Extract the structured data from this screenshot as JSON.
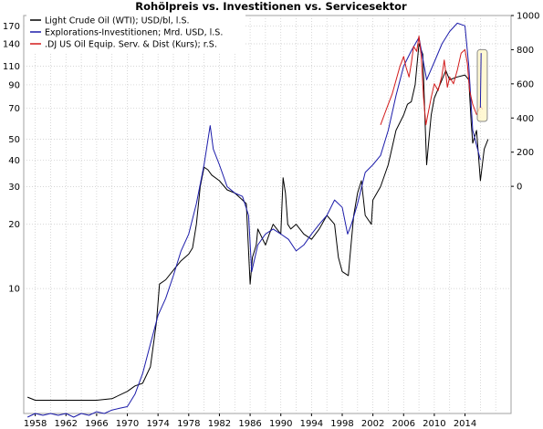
{
  "chart_data": {
    "type": "line",
    "title": "Rohölpreis vs. Investitionen vs. Servicesektor",
    "grid": true,
    "legend_position": "top-left",
    "x_ticks": [
      "1958",
      "1962",
      "1966",
      "1970",
      "1974",
      "1978",
      "1982",
      "1986",
      "1990",
      "1994",
      "1998",
      "2002",
      "2006",
      "2010",
      "2014"
    ],
    "xlim": [
      1956.5,
      2020
    ],
    "left_axis": {
      "scale": "log",
      "ticks": [
        10,
        20,
        30,
        40,
        50,
        70,
        90,
        110,
        140,
        170
      ],
      "ylim": [
        2.6,
        190
      ]
    },
    "right_axis": {
      "scale": "linear",
      "ticks": [
        0,
        200,
        400,
        600,
        800,
        1000
      ],
      "ylim": [
        -1330,
        1000
      ]
    },
    "series": [
      {
        "name": "Light Crude Oil (WTI); USD/bl, l.S.",
        "axis": "left",
        "color": "#000000",
        "x": [
          1957,
          1958,
          1962,
          1966,
          1968,
          1970,
          1971,
          1972,
          1973,
          1973.8,
          1974.2,
          1975,
          1976,
          1977,
          1978,
          1978.5,
          1979,
          1979.5,
          1980,
          1980.5,
          1981,
          1982,
          1983,
          1984,
          1985,
          1985.5,
          1986.0,
          1986.3,
          1986.8,
          1987,
          1988,
          1988.5,
          1989,
          1990,
          1990.3,
          1990.6,
          1990.9,
          1991.3,
          1992,
          1993,
          1994,
          1995,
          1996,
          1997,
          1997.5,
          1998,
          1998.8,
          1999,
          1999.5,
          2000,
          2000.5,
          2001,
          2001.8,
          2002,
          2003,
          2004,
          2005,
          2006,
          2006.5,
          2007,
          2007.5,
          2008,
          2008.5,
          2008.8,
          2009.0,
          2009.3,
          2009.6,
          2010,
          2011,
          2011.5,
          2012,
          2013,
          2014,
          2014.5,
          2014.8,
          2015,
          2015.5,
          2016,
          2016.5,
          2017
        ],
        "values": [
          3.1,
          3.0,
          3.0,
          3.0,
          3.05,
          3.3,
          3.5,
          3.6,
          4.3,
          7.0,
          10.5,
          11.0,
          12.2,
          13.5,
          14.5,
          15.5,
          20,
          30,
          37,
          36,
          34,
          32,
          29,
          28,
          26,
          25,
          10.5,
          14,
          16,
          19,
          16,
          18,
          20,
          18,
          33,
          28,
          20,
          19,
          20,
          18,
          17,
          19,
          22,
          20,
          14,
          12,
          11.5,
          14,
          22,
          28,
          32,
          22,
          20,
          26,
          30,
          38,
          55,
          65,
          73,
          75,
          90,
          140,
          125,
          60,
          38,
          50,
          65,
          78,
          95,
          105,
          95,
          98,
          100,
          95,
          60,
          48,
          55,
          32,
          45,
          50
        ]
      },
      {
        "name": "Explorations-Investitionen; Mrd. USD, l.S.",
        "axis": "left",
        "color": "#1c1caa",
        "x": [
          1957,
          1958,
          1959,
          1960,
          1961,
          1962,
          1963,
          1964,
          1965,
          1966,
          1967,
          1968,
          1969,
          1970,
          1971,
          1972,
          1973,
          1974,
          1975,
          1976,
          1977,
          1978,
          1979,
          1980,
          1980.8,
          1981.2,
          1982,
          1983,
          1984,
          1985,
          1985.8,
          1986.2,
          1987,
          1988,
          1989,
          1990,
          1991,
          1992,
          1993,
          1994,
          1995,
          1996,
          1997,
          1998,
          1998.7,
          1999.2,
          2000,
          2001,
          2002,
          2003,
          2004,
          2005,
          2006,
          2007,
          2008,
          2009,
          2010,
          2011,
          2012,
          2013,
          2014,
          2014.5,
          2015,
          2016
        ],
        "values": [
          2.5,
          2.6,
          2.55,
          2.6,
          2.55,
          2.6,
          2.5,
          2.6,
          2.55,
          2.65,
          2.6,
          2.7,
          2.75,
          2.8,
          3.2,
          4.0,
          5.5,
          7.5,
          9.0,
          11.5,
          15,
          18,
          25,
          38,
          58,
          45,
          38,
          30,
          28,
          27,
          22,
          12,
          16,
          18,
          19,
          18,
          17,
          15,
          16,
          18,
          20,
          22,
          26,
          24,
          18,
          20,
          25,
          35,
          38,
          42,
          55,
          80,
          110,
          130,
          150,
          95,
          115,
          140,
          160,
          175,
          170,
          110,
          55,
          40
        ]
      },
      {
        "name": ".DJ US Oil Equip. Serv. & Dist (Kurs); r.S.",
        "axis": "right",
        "color": "#d21a1a",
        "x": [
          2003.0,
          2003.5,
          2004.0,
          2004.5,
          2005.0,
          2005.5,
          2006.0,
          2006.3,
          2006.7,
          2007.0,
          2007.3,
          2007.7,
          2008.0,
          2008.3,
          2008.6,
          2008.9,
          2009.2,
          2009.6,
          2010.0,
          2010.5,
          2011.0,
          2011.3,
          2011.7,
          2012.0,
          2012.5,
          2013.0,
          2013.5,
          2014.0,
          2014.3,
          2014.6,
          2015.0,
          2015.5,
          2016.0,
          2016.3
        ],
        "values": [
          360,
          420,
          480,
          540,
          620,
          700,
          760,
          700,
          640,
          720,
          820,
          790,
          880,
          760,
          520,
          360,
          430,
          520,
          600,
          560,
          650,
          740,
          580,
          640,
          600,
          680,
          780,
          800,
          720,
          560,
          480,
          420,
          470,
          450
        ]
      }
    ],
    "annotations": [
      "highlight box around 2016 oil-equipment divergence"
    ]
  }
}
